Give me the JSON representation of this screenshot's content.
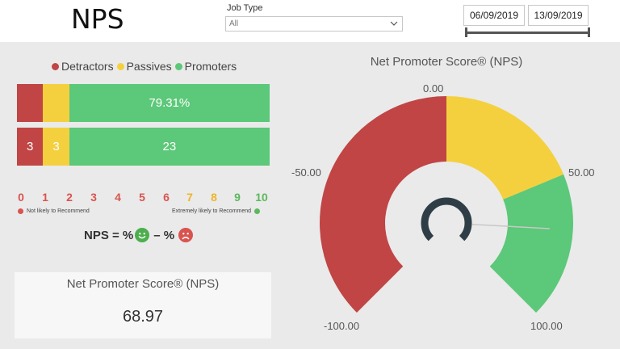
{
  "header": {
    "title": "NPS",
    "job_type_label": "Job Type",
    "job_type_value": "All",
    "date_start": "06/09/2019",
    "date_end": "13/09/2019"
  },
  "legend": {
    "detractors": "Detractors",
    "passives": "Passives",
    "promoters": "Promoters"
  },
  "colors": {
    "detractors": "#c14545",
    "passives": "#f4d03f",
    "promoters": "#5cc879",
    "needle": "#2f3e46"
  },
  "percent_bar": {
    "detractors_pct": 10.34,
    "passives_pct": 10.34,
    "promoters_pct": 79.31,
    "promoters_label": "79.31%"
  },
  "count_bar": {
    "detractors": "3",
    "passives": "3",
    "promoters": "23"
  },
  "scale": {
    "numbers": [
      "0",
      "1",
      "2",
      "3",
      "4",
      "5",
      "6",
      "7",
      "8",
      "9",
      "10"
    ],
    "low_caption": "Not likely to Recommend",
    "high_caption": "Extremely likely to Recommend"
  },
  "formula": {
    "prefix": "NPS = %",
    "minus": "– %"
  },
  "card": {
    "title": "Net Promoter Score® (NPS)",
    "value": "68.97"
  },
  "gauge": {
    "title": "Net Promoter Score® (NPS)",
    "min": -100,
    "max": 100,
    "value": 68.97,
    "label_min": "-100.00",
    "label_neg50": "-50.00",
    "label_zero": "0.00",
    "label_50": "50.00",
    "label_max": "100.00"
  }
}
